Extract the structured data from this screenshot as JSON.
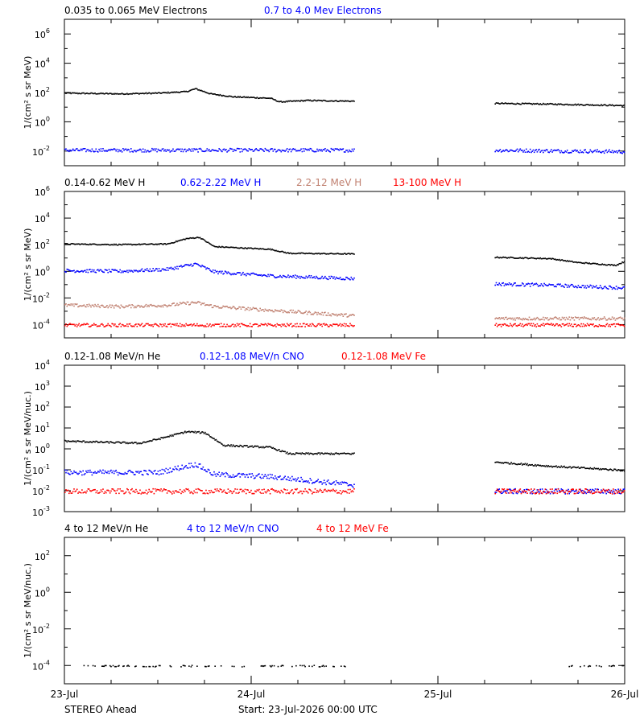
{
  "figure": {
    "footer_left": "STEREO Ahead",
    "footer_center": "Start: 23-Jul-2026 00:00 UTC",
    "x_ticks": [
      {
        "value": 0,
        "label": "23-Jul"
      },
      {
        "value": 1,
        "label": "24-Jul"
      },
      {
        "value": 2,
        "label": "25-Jul"
      },
      {
        "value": 3,
        "label": "26-Jul"
      }
    ],
    "colors": {
      "black": "#000000",
      "blue": "#0000ff",
      "tan": "#c08070",
      "red": "#ff0000"
    }
  },
  "chart_data": [
    {
      "type": "scatter",
      "panel": 1,
      "ylabel": "1/(cm² s sr MeV)",
      "y_scale": "log",
      "ylim_exp": [
        -3,
        7
      ],
      "y_tick_exps": [
        -2,
        0,
        2,
        4,
        6
      ],
      "xlim_days": [
        0,
        3
      ],
      "data_gap_days": [
        1.55,
        2.3
      ],
      "series": [
        {
          "name": "0.035 to 0.065 MeV Electrons",
          "color": "#000000",
          "log_profile": [
            [
              0,
              2.0
            ],
            [
              0.3,
              1.95
            ],
            [
              0.5,
              2.0
            ],
            [
              0.65,
              2.1
            ],
            [
              0.7,
              2.3
            ],
            [
              0.78,
              1.95
            ],
            [
              0.9,
              1.75
            ],
            [
              1.1,
              1.65
            ],
            [
              1.15,
              1.4
            ],
            [
              1.3,
              1.5
            ],
            [
              1.55,
              1.45
            ],
            [
              2.3,
              1.3
            ],
            [
              2.6,
              1.25
            ],
            [
              3.0,
              1.15
            ]
          ]
        },
        {
          "name": "0.7 to 4.0 Mev Electrons",
          "color": "#0000ff",
          "log_profile": [
            [
              0,
              -1.9
            ],
            [
              1.55,
              -1.9
            ],
            [
              2.3,
              -1.9
            ],
            [
              3.0,
              -2.0
            ]
          ]
        }
      ]
    },
    {
      "type": "scatter",
      "panel": 2,
      "ylabel": "1/(cm² s sr MeV)",
      "y_scale": "log",
      "ylim_exp": [
        -5,
        6
      ],
      "y_tick_exps": [
        -4,
        -2,
        0,
        2,
        4,
        6
      ],
      "xlim_days": [
        0,
        3
      ],
      "data_gap_days": [
        1.55,
        2.3
      ],
      "series": [
        {
          "name": "0.14-0.62 MeV H",
          "color": "#000000",
          "log_profile": [
            [
              0,
              2.1
            ],
            [
              0.3,
              2.05
            ],
            [
              0.55,
              2.1
            ],
            [
              0.65,
              2.5
            ],
            [
              0.72,
              2.6
            ],
            [
              0.8,
              1.9
            ],
            [
              1.1,
              1.7
            ],
            [
              1.2,
              1.4
            ],
            [
              1.55,
              1.35
            ],
            [
              2.3,
              1.1
            ],
            [
              2.6,
              1.0
            ],
            [
              2.75,
              0.7
            ],
            [
              2.95,
              0.5
            ],
            [
              3.0,
              0.8
            ]
          ]
        },
        {
          "name": "0.62-2.22 MeV H",
          "color": "#0000ff",
          "log_profile": [
            [
              0,
              0.1
            ],
            [
              0.3,
              0.05
            ],
            [
              0.55,
              0.2
            ],
            [
              0.7,
              0.6
            ],
            [
              0.8,
              0.0
            ],
            [
              1.1,
              -0.3
            ],
            [
              1.55,
              -0.5
            ],
            [
              2.3,
              -0.9
            ],
            [
              2.6,
              -1.0
            ],
            [
              3.0,
              -1.2
            ]
          ]
        },
        {
          "name": "2.2-12 MeV H",
          "color": "#c08070",
          "log_profile": [
            [
              0,
              -2.5
            ],
            [
              0.3,
              -2.6
            ],
            [
              0.55,
              -2.5
            ],
            [
              0.7,
              -2.3
            ],
            [
              0.8,
              -2.6
            ],
            [
              1.55,
              -3.3
            ],
            [
              2.3,
              -3.5
            ],
            [
              3.0,
              -3.5
            ]
          ]
        },
        {
          "name": "13-100 MeV H",
          "color": "#ff0000",
          "log_profile": [
            [
              0,
              -4.0
            ],
            [
              1.55,
              -4.0
            ],
            [
              2.3,
              -4.0
            ],
            [
              3.0,
              -4.0
            ]
          ]
        }
      ]
    },
    {
      "type": "scatter",
      "panel": 3,
      "ylabel": "1/(cm² s sr MeV/nuc.)",
      "y_scale": "log",
      "ylim_exp": [
        -3,
        4
      ],
      "y_tick_exps": [
        -3,
        -2,
        -1,
        0,
        1,
        2,
        3,
        4
      ],
      "xlim_days": [
        0,
        3
      ],
      "data_gap_days": [
        1.55,
        2.3
      ],
      "series": [
        {
          "name": "0.12-1.08 MeV/n He",
          "color": "#000000",
          "log_profile": [
            [
              0,
              0.4
            ],
            [
              0.4,
              0.3
            ],
            [
              0.5,
              0.5
            ],
            [
              0.65,
              0.85
            ],
            [
              0.75,
              0.8
            ],
            [
              0.85,
              0.2
            ],
            [
              1.1,
              0.1
            ],
            [
              1.2,
              -0.2
            ],
            [
              1.55,
              -0.2
            ],
            [
              2.3,
              -0.6
            ],
            [
              2.6,
              -0.8
            ],
            [
              3.0,
              -1.0
            ]
          ]
        },
        {
          "name": "0.12-1.08 MeV/n CNO",
          "color": "#0000ff",
          "log_profile": [
            [
              0,
              -1.1
            ],
            [
              0.5,
              -1.1
            ],
            [
              0.7,
              -0.7
            ],
            [
              0.8,
              -1.2
            ],
            [
              1.1,
              -1.3
            ],
            [
              1.55,
              -1.7
            ],
            [
              2.3,
              -2.0
            ],
            [
              3.0,
              -2.0
            ]
          ]
        },
        {
          "name": "0.12-1.08 MeV Fe",
          "color": "#ff0000",
          "log_profile": [
            [
              0,
              -2.0
            ],
            [
              1.55,
              -2.0
            ],
            [
              2.3,
              -2.0
            ],
            [
              3.0,
              -2.0
            ]
          ]
        }
      ]
    },
    {
      "type": "scatter",
      "panel": 4,
      "ylabel": "1/(cm² s sr MeV/nuc.)",
      "y_scale": "log",
      "ylim_exp": [
        -5,
        3
      ],
      "y_tick_exps": [
        -4,
        -2,
        0,
        2
      ],
      "xlim_days": [
        0,
        3
      ],
      "data_gap_days": [
        1.55,
        2.3
      ],
      "series": [
        {
          "name": "4 to 12 MeV/n He",
          "color": "#000000",
          "sparse_ranges_days": [
            [
              0.1,
              1.5
            ],
            [
              2.7,
              3.0
            ]
          ],
          "log_profile": [
            [
              0,
              -4.0
            ],
            [
              3.0,
              -4.0
            ]
          ]
        },
        {
          "name": "4 to 12 MeV/n CNO",
          "color": "#0000ff",
          "log_profile": []
        },
        {
          "name": "4 to 12 MeV Fe",
          "color": "#ff0000",
          "log_profile": []
        }
      ]
    }
  ]
}
